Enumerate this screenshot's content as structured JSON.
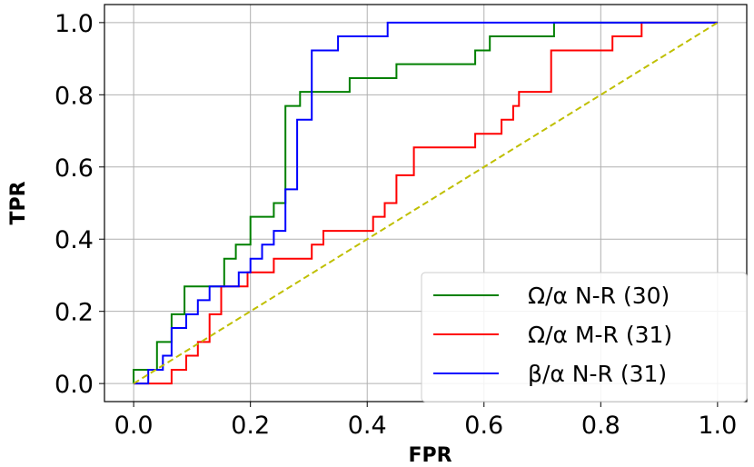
{
  "chart_data": {
    "type": "line",
    "title": "",
    "xlabel": "FPR",
    "ylabel": "TPR",
    "xlim": [
      -0.05,
      1.05
    ],
    "ylim": [
      -0.05,
      1.05
    ],
    "xticks": [
      0.0,
      0.2,
      0.4,
      0.6,
      0.8,
      1.0
    ],
    "yticks": [
      0.0,
      0.2,
      0.4,
      0.6,
      0.8,
      1.0
    ],
    "xtick_labels": [
      "0.0",
      "0.2",
      "0.4",
      "0.6",
      "0.8",
      "1.0"
    ],
    "ytick_labels": [
      "0.0",
      "0.2",
      "0.4",
      "0.6",
      "0.8",
      "1.0"
    ],
    "grid": true,
    "legend_position": "lower-right",
    "series": [
      {
        "name": "Ω/α N-R (30)",
        "color": "#008000",
        "step": true,
        "points": [
          [
            0,
            0
          ],
          [
            0,
            0.038
          ],
          [
            0.04,
            0.038
          ],
          [
            0.04,
            0.115
          ],
          [
            0.065,
            0.115
          ],
          [
            0.065,
            0.192
          ],
          [
            0.087,
            0.192
          ],
          [
            0.087,
            0.269
          ],
          [
            0.155,
            0.269
          ],
          [
            0.155,
            0.346
          ],
          [
            0.175,
            0.346
          ],
          [
            0.175,
            0.385
          ],
          [
            0.2,
            0.385
          ],
          [
            0.2,
            0.462
          ],
          [
            0.24,
            0.462
          ],
          [
            0.24,
            0.5
          ],
          [
            0.26,
            0.5
          ],
          [
            0.26,
            0.769
          ],
          [
            0.285,
            0.769
          ],
          [
            0.285,
            0.808
          ],
          [
            0.31,
            0.808
          ],
          [
            0.31,
            0.808
          ],
          [
            0.37,
            0.808
          ],
          [
            0.37,
            0.846
          ],
          [
            0.45,
            0.846
          ],
          [
            0.45,
            0.885
          ],
          [
            0.585,
            0.885
          ],
          [
            0.585,
            0.923
          ],
          [
            0.61,
            0.923
          ],
          [
            0.61,
            0.962
          ],
          [
            0.72,
            0.962
          ],
          [
            0.72,
            1.0
          ],
          [
            1.0,
            1.0
          ]
        ]
      },
      {
        "name": "Ω/α M-R (31)",
        "color": "#ff0000",
        "step": true,
        "points": [
          [
            0,
            0
          ],
          [
            0.065,
            0
          ],
          [
            0.065,
            0.038
          ],
          [
            0.09,
            0.038
          ],
          [
            0.09,
            0.077
          ],
          [
            0.11,
            0.077
          ],
          [
            0.11,
            0.115
          ],
          [
            0.13,
            0.115
          ],
          [
            0.13,
            0.192
          ],
          [
            0.15,
            0.192
          ],
          [
            0.15,
            0.269
          ],
          [
            0.195,
            0.269
          ],
          [
            0.195,
            0.308
          ],
          [
            0.24,
            0.308
          ],
          [
            0.24,
            0.346
          ],
          [
            0.305,
            0.346
          ],
          [
            0.305,
            0.385
          ],
          [
            0.325,
            0.385
          ],
          [
            0.325,
            0.423
          ],
          [
            0.41,
            0.423
          ],
          [
            0.41,
            0.462
          ],
          [
            0.43,
            0.462
          ],
          [
            0.43,
            0.5
          ],
          [
            0.45,
            0.5
          ],
          [
            0.45,
            0.577
          ],
          [
            0.48,
            0.577
          ],
          [
            0.48,
            0.654
          ],
          [
            0.585,
            0.654
          ],
          [
            0.585,
            0.692
          ],
          [
            0.63,
            0.692
          ],
          [
            0.63,
            0.731
          ],
          [
            0.65,
            0.731
          ],
          [
            0.65,
            0.769
          ],
          [
            0.66,
            0.769
          ],
          [
            0.66,
            0.808
          ],
          [
            0.715,
            0.808
          ],
          [
            0.715,
            0.923
          ],
          [
            0.82,
            0.923
          ],
          [
            0.82,
            0.962
          ],
          [
            0.87,
            0.962
          ],
          [
            0.87,
            1.0
          ],
          [
            1.0,
            1.0
          ]
        ]
      },
      {
        "name": "β/α N-R (31)",
        "color": "#0000ff",
        "step": true,
        "points": [
          [
            0,
            0
          ],
          [
            0.025,
            0
          ],
          [
            0.025,
            0.038
          ],
          [
            0.05,
            0.038
          ],
          [
            0.05,
            0.077
          ],
          [
            0.065,
            0.077
          ],
          [
            0.065,
            0.154
          ],
          [
            0.09,
            0.154
          ],
          [
            0.09,
            0.192
          ],
          [
            0.11,
            0.192
          ],
          [
            0.11,
            0.231
          ],
          [
            0.13,
            0.231
          ],
          [
            0.13,
            0.269
          ],
          [
            0.18,
            0.269
          ],
          [
            0.18,
            0.308
          ],
          [
            0.2,
            0.308
          ],
          [
            0.2,
            0.346
          ],
          [
            0.22,
            0.346
          ],
          [
            0.22,
            0.385
          ],
          [
            0.24,
            0.385
          ],
          [
            0.24,
            0.423
          ],
          [
            0.26,
            0.423
          ],
          [
            0.26,
            0.538
          ],
          [
            0.28,
            0.538
          ],
          [
            0.28,
            0.731
          ],
          [
            0.305,
            0.731
          ],
          [
            0.305,
            0.923
          ],
          [
            0.35,
            0.923
          ],
          [
            0.35,
            0.962
          ],
          [
            0.435,
            0.962
          ],
          [
            0.435,
            1.0
          ],
          [
            1.0,
            1.0
          ]
        ]
      },
      {
        "name": "",
        "color": "#bfbf00",
        "dashed": true,
        "points": [
          [
            0,
            0
          ],
          [
            1,
            1
          ]
        ]
      }
    ]
  }
}
